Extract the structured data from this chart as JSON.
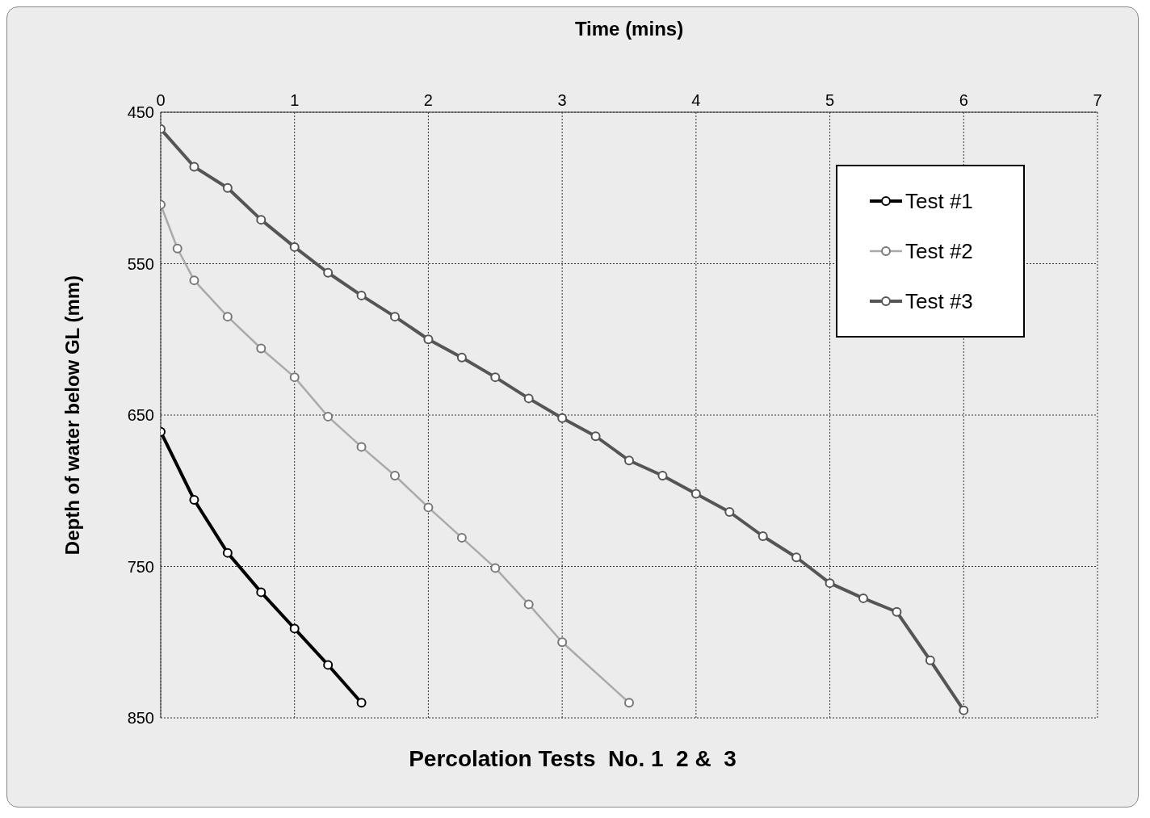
{
  "chart_data": {
    "type": "line",
    "title": "Percolation Tests  No. 1  2 &  3",
    "xlabel": "Time (mins)",
    "ylabel": "Depth of water below GL (mm)",
    "xlim": [
      0,
      7
    ],
    "xticks": [
      0,
      1,
      2,
      3,
      4,
      5,
      6,
      7
    ],
    "ylim": [
      850,
      450
    ],
    "yticks": [
      450,
      550,
      650,
      750,
      850
    ],
    "grid": true,
    "legend": "top right",
    "marker": "circle",
    "line_style": "solid",
    "series": [
      {
        "name": "Test #1",
        "color": "#000000",
        "x": [
          0,
          0.25,
          0.5,
          0.75,
          1,
          1.25,
          1.5
        ],
        "values": [
          661,
          706,
          741,
          767,
          791,
          815,
          840
        ]
      },
      {
        "name": "Test #2",
        "color": "#aaaaaa",
        "x": [
          0,
          0.125,
          0.25,
          0.5,
          0.75,
          1,
          1.25,
          1.5,
          1.75,
          2,
          2.25,
          2.5,
          2.75,
          3,
          3.5
        ],
        "values": [
          511,
          540,
          561,
          585,
          606,
          625,
          651,
          671,
          690,
          711,
          731,
          751,
          775,
          800,
          840
        ]
      },
      {
        "name": "Test #3",
        "color": "#555555",
        "x": [
          0,
          0.25,
          0.5,
          0.75,
          1,
          1.25,
          1.5,
          1.75,
          2,
          2.25,
          2.5,
          2.75,
          3,
          3.25,
          3.5,
          3.75,
          4,
          4.25,
          4.5,
          4.75,
          5,
          5.25,
          5.5,
          5.75,
          6
        ],
        "values": [
          461,
          486,
          500,
          521,
          539,
          556,
          571,
          585,
          600,
          612,
          625,
          639,
          652,
          664,
          680,
          690,
          702,
          714,
          730,
          744,
          761,
          771,
          780,
          812,
          845
        ]
      }
    ]
  }
}
